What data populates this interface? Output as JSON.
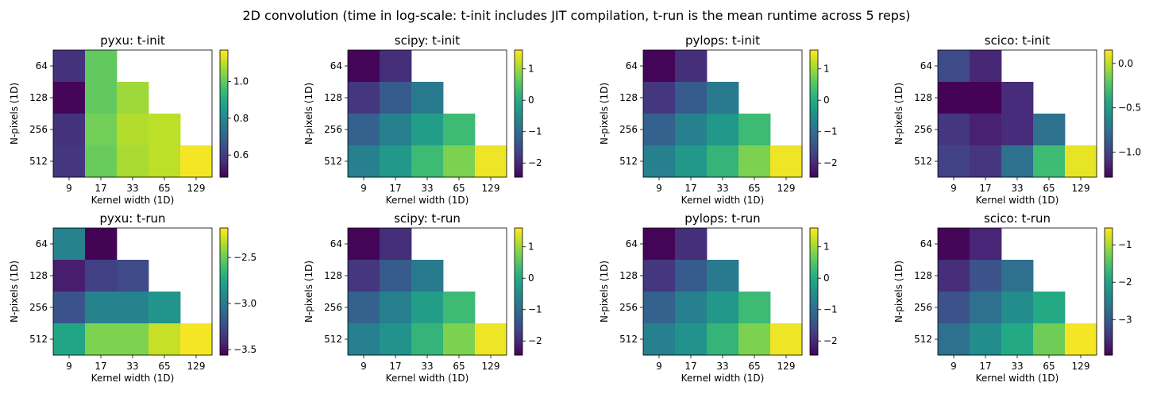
{
  "figure": {
    "suptitle": "2D convolution (time in log-scale: t-init includes JIT compilation, t-run is the mean runtime across 5 reps)"
  },
  "colormap": "viridis",
  "chart_data": [
    {
      "type": "heatmap",
      "title": "pyxu: t-init",
      "xlabel": "Kernel width (1D)",
      "ylabel": "N-pixels (1D)",
      "x_categories": [
        "9",
        "17",
        "33",
        "65",
        "129"
      ],
      "y_categories": [
        "64",
        "128",
        "256",
        "512"
      ],
      "values": [
        [
          0.58,
          1.0,
          null,
          null,
          null
        ],
        [
          0.49,
          1.0,
          1.07,
          null,
          null
        ],
        [
          0.58,
          1.02,
          1.09,
          1.1,
          null
        ],
        [
          0.59,
          1.01,
          1.08,
          1.1,
          1.16
        ]
      ],
      "vmin": 0.48,
      "vmax": 1.17,
      "colorbar_ticks": [
        0.6,
        0.8,
        1.0
      ],
      "colorbar_ticklabels": [
        "0.6",
        "0.8",
        "1.0"
      ]
    },
    {
      "type": "heatmap",
      "title": "scipy: t-init",
      "xlabel": "Kernel width (1D)",
      "ylabel": "N-pixels (1D)",
      "x_categories": [
        "9",
        "17",
        "33",
        "65",
        "129"
      ],
      "y_categories": [
        "64",
        "128",
        "256",
        "512"
      ],
      "values": [
        [
          -2.4,
          -1.9,
          null,
          null,
          null
        ],
        [
          -1.8,
          -1.3,
          -0.8,
          null,
          null
        ],
        [
          -1.2,
          -0.7,
          -0.2,
          0.3,
          null
        ],
        [
          -0.7,
          -0.3,
          0.3,
          0.8,
          1.5
        ]
      ],
      "vmin": -2.45,
      "vmax": 1.6,
      "colorbar_ticks": [
        -2,
        -1,
        0,
        1
      ],
      "colorbar_ticklabels": [
        "−2",
        "−1",
        "0",
        "1"
      ]
    },
    {
      "type": "heatmap",
      "title": "pylops: t-init",
      "xlabel": "Kernel width (1D)",
      "ylabel": "N-pixels (1D)",
      "x_categories": [
        "9",
        "17",
        "33",
        "65",
        "129"
      ],
      "y_categories": [
        "64",
        "128",
        "256",
        "512"
      ],
      "values": [
        [
          -2.4,
          -1.9,
          null,
          null,
          null
        ],
        [
          -1.8,
          -1.3,
          -0.8,
          null,
          null
        ],
        [
          -1.2,
          -0.7,
          -0.3,
          0.3,
          null
        ],
        [
          -0.7,
          -0.3,
          0.2,
          0.8,
          1.5
        ]
      ],
      "vmin": -2.45,
      "vmax": 1.6,
      "colorbar_ticks": [
        -2,
        -1,
        0,
        1
      ],
      "colorbar_ticklabels": [
        "−2",
        "−1",
        "0",
        "1"
      ]
    },
    {
      "type": "heatmap",
      "title": "scico: t-init",
      "xlabel": "Kernel width (1D)",
      "ylabel": "N-pixels (1D)",
      "x_categories": [
        "9",
        "17",
        "33",
        "65",
        "129"
      ],
      "y_categories": [
        "64",
        "128",
        "256",
        "512"
      ],
      "values": [
        [
          -0.95,
          -1.12,
          null,
          null,
          null
        ],
        [
          -1.27,
          -1.27,
          -1.1,
          null,
          null
        ],
        [
          -1.05,
          -1.15,
          -1.1,
          -0.75,
          null
        ],
        [
          -1.0,
          -1.05,
          -0.75,
          -0.3,
          0.1
        ]
      ],
      "vmin": -1.28,
      "vmax": 0.15,
      "colorbar_ticks": [
        -1.0,
        -0.5,
        0.0
      ],
      "colorbar_ticklabels": [
        "−1.0",
        "−0.5",
        "0.0"
      ]
    },
    {
      "type": "heatmap",
      "title": "pyxu: t-run",
      "xlabel": "Kernel width (1D)",
      "ylabel": "N-pixels (1D)",
      "x_categories": [
        "9",
        "17",
        "33",
        "65",
        "129"
      ],
      "y_categories": [
        "64",
        "128",
        "256",
        "512"
      ],
      "values": [
        [
          -2.95,
          -3.55,
          null,
          null,
          null
        ],
        [
          -3.45,
          -3.3,
          -3.25,
          null,
          null
        ],
        [
          -3.2,
          -2.95,
          -2.95,
          -2.85,
          null
        ],
        [
          -2.75,
          -2.45,
          -2.45,
          -2.3,
          -2.2
        ]
      ],
      "vmin": -3.56,
      "vmax": -2.18,
      "colorbar_ticks": [
        -3.5,
        -3.0,
        -2.5
      ],
      "colorbar_ticklabels": [
        "−3.5",
        "−3.0",
        "−2.5"
      ]
    },
    {
      "type": "heatmap",
      "title": "scipy: t-run",
      "xlabel": "Kernel width (1D)",
      "ylabel": "N-pixels (1D)",
      "x_categories": [
        "9",
        "17",
        "33",
        "65",
        "129"
      ],
      "y_categories": [
        "64",
        "128",
        "256",
        "512"
      ],
      "values": [
        [
          -2.4,
          -1.9,
          null,
          null,
          null
        ],
        [
          -1.8,
          -1.3,
          -0.8,
          null,
          null
        ],
        [
          -1.2,
          -0.7,
          -0.2,
          0.3,
          null
        ],
        [
          -0.7,
          -0.4,
          0.2,
          0.8,
          1.5
        ]
      ],
      "vmin": -2.45,
      "vmax": 1.6,
      "colorbar_ticks": [
        -2,
        -1,
        0,
        1
      ],
      "colorbar_ticklabels": [
        "−2",
        "−1",
        "0",
        "1"
      ]
    },
    {
      "type": "heatmap",
      "title": "pylops: t-run",
      "xlabel": "Kernel width (1D)",
      "ylabel": "N-pixels (1D)",
      "x_categories": [
        "9",
        "17",
        "33",
        "65",
        "129"
      ],
      "y_categories": [
        "64",
        "128",
        "256",
        "512"
      ],
      "values": [
        [
          -2.4,
          -1.9,
          null,
          null,
          null
        ],
        [
          -1.8,
          -1.3,
          -0.8,
          null,
          null
        ],
        [
          -1.2,
          -0.7,
          -0.3,
          0.3,
          null
        ],
        [
          -0.7,
          -0.4,
          0.2,
          0.8,
          1.5
        ]
      ],
      "vmin": -2.45,
      "vmax": 1.6,
      "colorbar_ticks": [
        -2,
        -1,
        0,
        1
      ],
      "colorbar_ticklabels": [
        "−2",
        "−1",
        "0",
        "1"
      ]
    },
    {
      "type": "heatmap",
      "title": "scico: t-run",
      "xlabel": "Kernel width (1D)",
      "ylabel": "N-pixels (1D)",
      "x_categories": [
        "9",
        "17",
        "33",
        "65",
        "129"
      ],
      "y_categories": [
        "64",
        "128",
        "256",
        "512"
      ],
      "values": [
        [
          -3.9,
          -3.6,
          null,
          null,
          null
        ],
        [
          -3.5,
          -3.1,
          -2.7,
          null,
          null
        ],
        [
          -3.1,
          -2.7,
          -2.3,
          -1.9,
          null
        ],
        [
          -2.7,
          -2.3,
          -1.9,
          -1.3,
          -0.6
        ]
      ],
      "vmin": -3.95,
      "vmax": -0.55,
      "colorbar_ticks": [
        -3,
        -2,
        -1
      ],
      "colorbar_ticklabels": [
        "−3",
        "−2",
        "−1"
      ]
    }
  ]
}
